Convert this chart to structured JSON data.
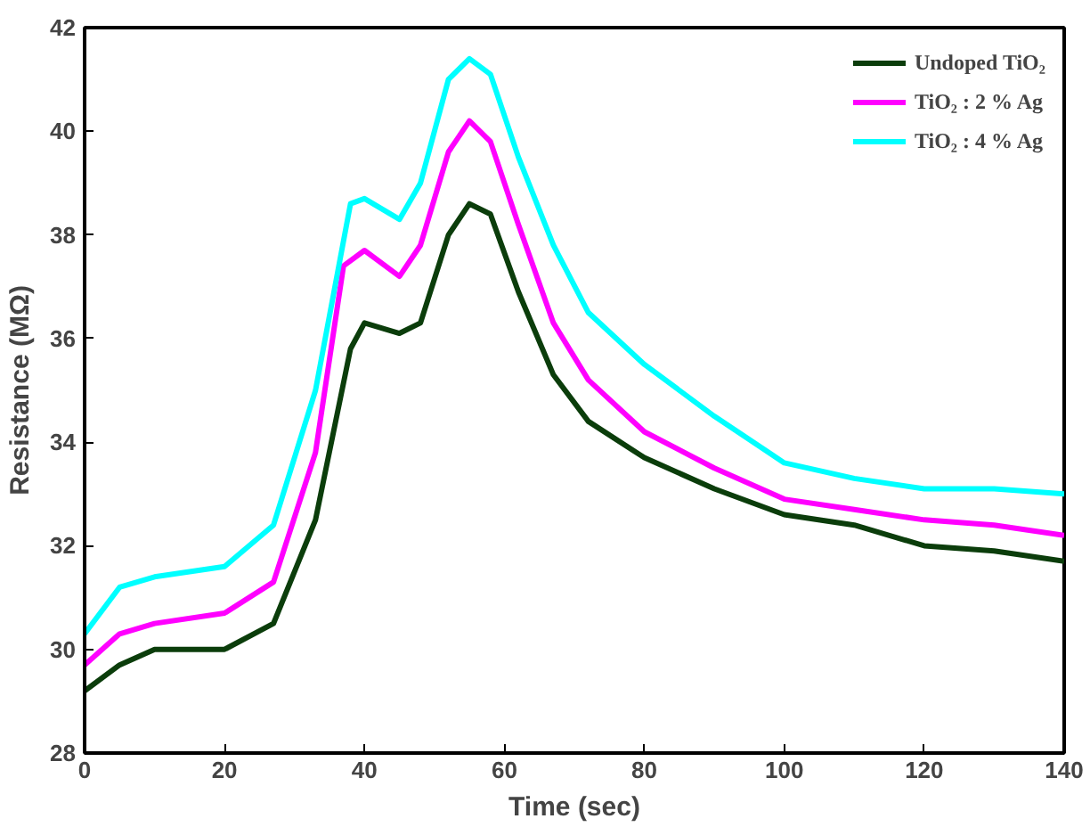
{
  "chart_data": {
    "type": "line",
    "xlabel": "Time (sec)",
    "ylabel": "Resistance (MΩ)",
    "xlim": [
      0,
      140
    ],
    "ylim": [
      28,
      42
    ],
    "xticks": [
      0,
      20,
      40,
      60,
      80,
      100,
      120,
      140
    ],
    "yticks": [
      28,
      30,
      32,
      34,
      36,
      38,
      40,
      42
    ],
    "grid": false,
    "legend": "top right",
    "marker": "none",
    "line_style": "solid",
    "series": [
      {
        "name": "Undoped TiO₂",
        "color": "#0b3d0b",
        "x": [
          0,
          5,
          10,
          20,
          27,
          33,
          38,
          40,
          45,
          48,
          52,
          55,
          58,
          62,
          67,
          72,
          80,
          90,
          100,
          110,
          120,
          130,
          140
        ],
        "values": [
          29.2,
          29.7,
          30.0,
          30.0,
          30.5,
          32.5,
          35.8,
          36.3,
          36.1,
          36.3,
          38.0,
          38.6,
          38.4,
          36.9,
          35.3,
          34.4,
          33.7,
          33.1,
          32.6,
          32.4,
          32.0,
          31.9,
          31.7
        ]
      },
      {
        "name": "TiO₂ : 2 % Ag",
        "color": "#ff00ff",
        "x": [
          0,
          5,
          10,
          20,
          27,
          33,
          37,
          40,
          45,
          48,
          52,
          55,
          58,
          62,
          67,
          72,
          80,
          90,
          100,
          110,
          120,
          130,
          140
        ],
        "values": [
          29.7,
          30.3,
          30.5,
          30.7,
          31.3,
          33.8,
          37.4,
          37.7,
          37.2,
          37.8,
          39.6,
          40.2,
          39.8,
          38.2,
          36.3,
          35.2,
          34.2,
          33.5,
          32.9,
          32.7,
          32.5,
          32.4,
          32.2
        ]
      },
      {
        "name": "TiO₂ : 4 % Ag",
        "color": "#00ffff",
        "x": [
          0,
          5,
          10,
          20,
          27,
          33,
          38,
          40,
          45,
          48,
          52,
          55,
          58,
          62,
          67,
          72,
          80,
          90,
          100,
          110,
          120,
          130,
          140
        ],
        "values": [
          30.3,
          31.2,
          31.4,
          31.6,
          32.4,
          35.0,
          38.6,
          38.7,
          38.3,
          39.0,
          41.0,
          41.4,
          41.1,
          39.5,
          37.8,
          36.5,
          35.5,
          34.5,
          33.6,
          33.3,
          33.1,
          33.1,
          33.0
        ]
      }
    ]
  }
}
